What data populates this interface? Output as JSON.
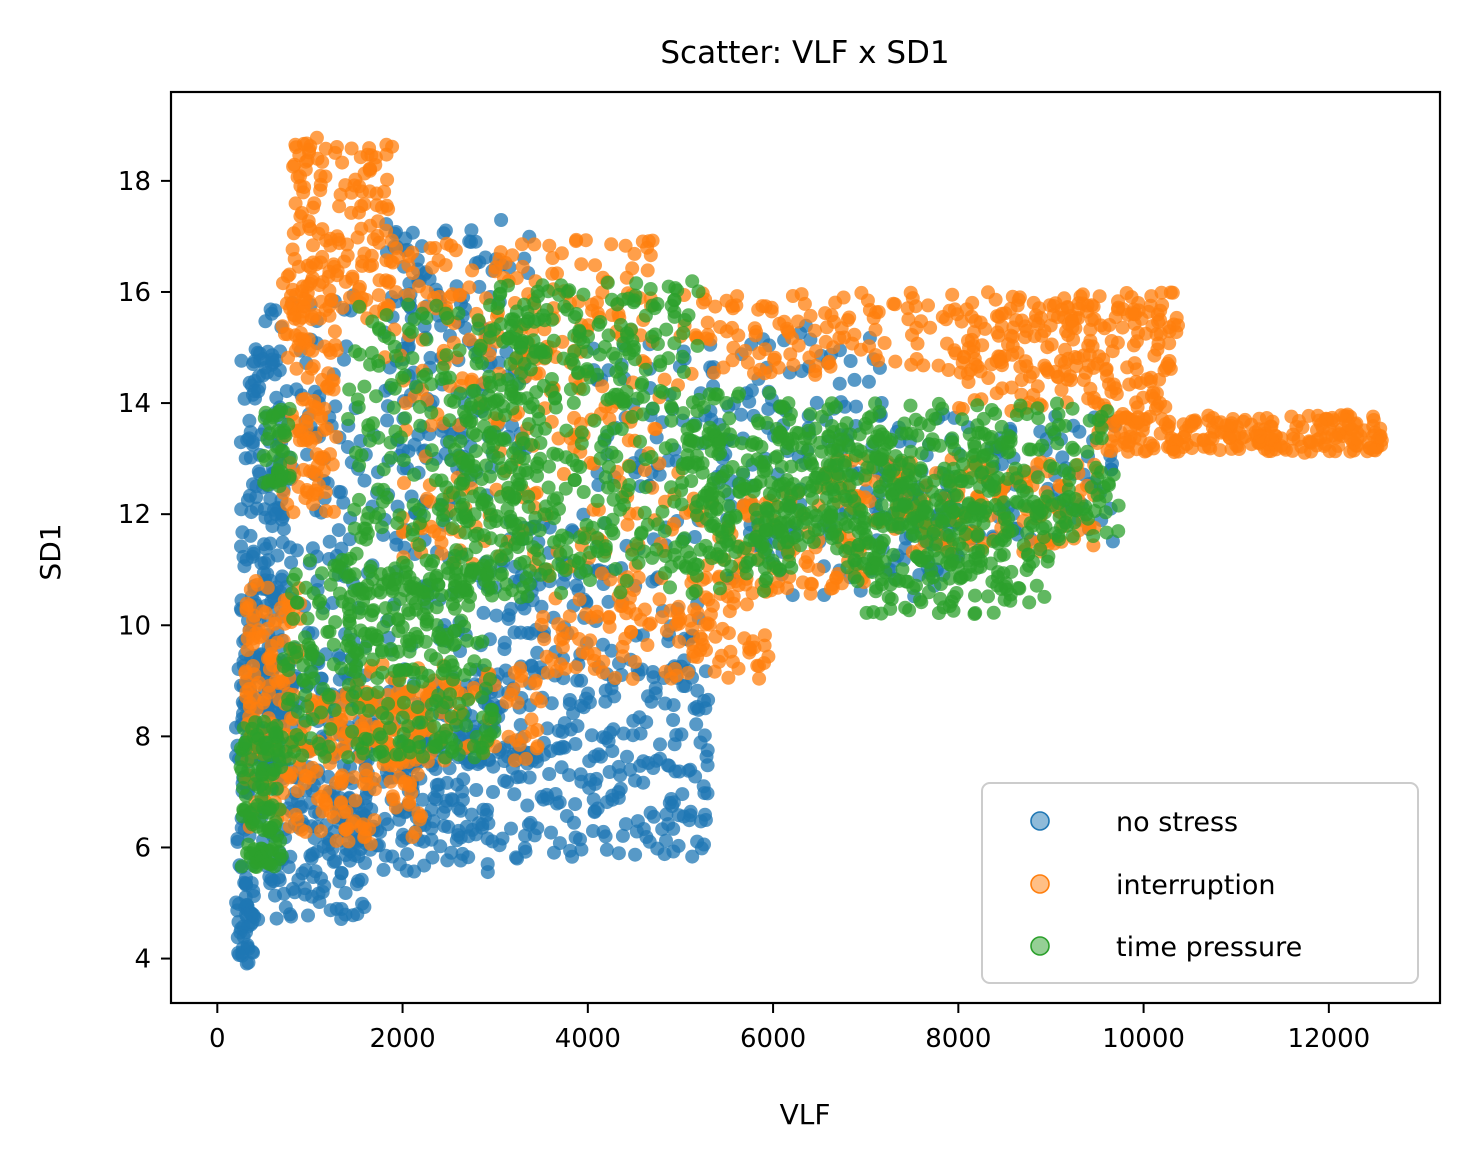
{
  "chart_data": {
    "type": "scatter",
    "title": "Scatter: VLF x SD1",
    "xlabel": "VLF",
    "ylabel": "SD1",
    "xlim": [
      -500,
      13200
    ],
    "ylim": [
      3.2,
      19.6
    ],
    "xticks": [
      0,
      2000,
      4000,
      6000,
      8000,
      10000,
      12000
    ],
    "xtick_labels": [
      "0",
      "2000",
      "4000",
      "6000",
      "8000",
      "10000",
      "12000"
    ],
    "yticks": [
      4,
      6,
      8,
      10,
      12,
      14,
      16,
      18
    ],
    "ytick_labels": [
      "4",
      "6",
      "8",
      "10",
      "12",
      "14",
      "16",
      "18"
    ],
    "grid": false,
    "legend_position": "lower-right",
    "series": [
      {
        "name": "no stress",
        "color": "#1f77b4",
        "regions": [
          {
            "x": [
              200,
              400
            ],
            "y": [
              3.9,
              5.5
            ],
            "n": 40
          },
          {
            "x": [
              200,
              1600
            ],
            "y": [
              4.7,
              9.5
            ],
            "n": 260
          },
          {
            "x": [
              250,
              700
            ],
            "y": [
              7.0,
              15.0
            ],
            "n": 200
          },
          {
            "x": [
              500,
              1500
            ],
            "y": [
              8.5,
              16.0
            ],
            "n": 120
          },
          {
            "x": [
              1000,
              3000
            ],
            "y": [
              5.5,
              9.0
            ],
            "n": 140
          },
          {
            "x": [
              1500,
              5300
            ],
            "y": [
              5.8,
              8.0
            ],
            "n": 220
          },
          {
            "x": [
              2000,
              5300
            ],
            "y": [
              7.5,
              9.3
            ],
            "n": 150
          },
          {
            "x": [
              1800,
              3400
            ],
            "y": [
              13.0,
              17.3
            ],
            "n": 150
          },
          {
            "x": [
              1500,
              3000
            ],
            "y": [
              9.5,
              13.5
            ],
            "n": 90
          },
          {
            "x": [
              3000,
              5200
            ],
            "y": [
              9.0,
              12.0
            ],
            "n": 120
          },
          {
            "x": [
              4000,
              7200
            ],
            "y": [
              12.5,
              15.4
            ],
            "n": 140
          },
          {
            "x": [
              7000,
              9700
            ],
            "y": [
              11.5,
              13.8
            ],
            "n": 120
          },
          {
            "x": [
              5500,
              8000
            ],
            "y": [
              10.5,
              12.5
            ],
            "n": 80
          }
        ]
      },
      {
        "name": "interruption",
        "color": "#ff7f0e",
        "regions": [
          {
            "x": [
              800,
              1900
            ],
            "y": [
              15.5,
              18.8
            ],
            "n": 150
          },
          {
            "x": [
              700,
              1300
            ],
            "y": [
              12.0,
              16.5
            ],
            "n": 120
          },
          {
            "x": [
              300,
              900
            ],
            "y": [
              6.3,
              10.8
            ],
            "n": 140
          },
          {
            "x": [
              900,
              2200
            ],
            "y": [
              6.0,
              8.8
            ],
            "n": 150
          },
          {
            "x": [
              1500,
              3500
            ],
            "y": [
              7.5,
              9.3
            ],
            "n": 120
          },
          {
            "x": [
              1800,
              4700
            ],
            "y": [
              14.5,
              17.0
            ],
            "n": 160
          },
          {
            "x": [
              2000,
              5000
            ],
            "y": [
              11.0,
              14.5
            ],
            "n": 150
          },
          {
            "x": [
              3500,
              6000
            ],
            "y": [
              9.0,
              11.0
            ],
            "n": 140
          },
          {
            "x": [
              5000,
              10400
            ],
            "y": [
              14.5,
              16.0
            ],
            "n": 230
          },
          {
            "x": [
              8000,
              10300
            ],
            "y": [
              13.8,
              15.8
            ],
            "n": 150
          },
          {
            "x": [
              9500,
              12600
            ],
            "y": [
              13.1,
              13.8
            ],
            "n": 230
          },
          {
            "x": [
              6500,
              9500
            ],
            "y": [
              11.3,
              13.0
            ],
            "n": 160
          },
          {
            "x": [
              5000,
              7000
            ],
            "y": [
              10.5,
              12.5
            ],
            "n": 90
          }
        ]
      },
      {
        "name": "time pressure",
        "color": "#2ca02c",
        "regions": [
          {
            "x": [
              250,
              700
            ],
            "y": [
              5.6,
              8.3
            ],
            "n": 120
          },
          {
            "x": [
              500,
              800
            ],
            "y": [
              12.5,
              13.9
            ],
            "n": 40
          },
          {
            "x": [
              700,
              3000
            ],
            "y": [
              7.6,
              11.2
            ],
            "n": 340
          },
          {
            "x": [
              1400,
              3500
            ],
            "y": [
              10.5,
              15.8
            ],
            "n": 230
          },
          {
            "x": [
              3000,
              5200
            ],
            "y": [
              14.0,
              16.2
            ],
            "n": 150
          },
          {
            "x": [
              2500,
              6200
            ],
            "y": [
              10.5,
              14.2
            ],
            "n": 360
          },
          {
            "x": [
              5000,
              8500
            ],
            "y": [
              11.0,
              13.5
            ],
            "n": 260
          },
          {
            "x": [
              6000,
              9700
            ],
            "y": [
              12.0,
              14.0
            ],
            "n": 230
          },
          {
            "x": [
              6800,
              9000
            ],
            "y": [
              10.2,
              11.5
            ],
            "n": 110
          },
          {
            "x": [
              5800,
              9800
            ],
            "y": [
              11.5,
              12.2
            ],
            "n": 110
          }
        ]
      }
    ]
  }
}
